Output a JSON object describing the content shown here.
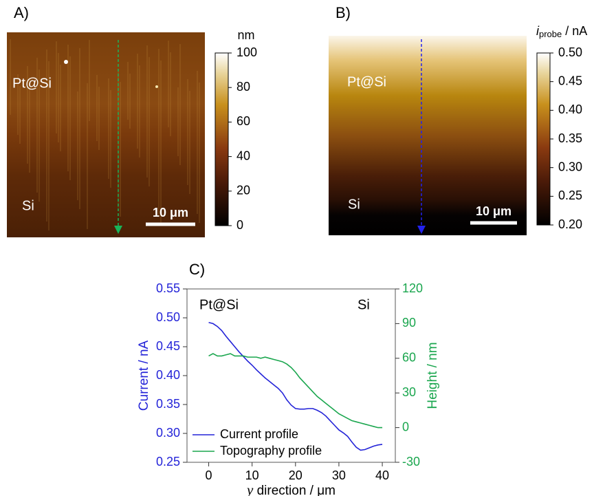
{
  "chart_data": [
    {
      "type": "image",
      "panel_label": "A)",
      "annotations": [
        "Pt@Si",
        "Si"
      ],
      "scale_bar": "10 μm",
      "colorbar_label": "nm",
      "clim": [
        0,
        100
      ],
      "cticks": [
        0,
        20,
        40,
        60,
        80,
        100
      ]
    },
    {
      "type": "image",
      "panel_label": "B)",
      "annotations": [
        "Pt@Si",
        "Si"
      ],
      "scale_bar": "10 μm",
      "colorbar_label": [
        "i",
        "probe",
        " / nA"
      ],
      "clim": [
        0.2,
        0.5
      ],
      "cticks": [
        {
          "value": 0.2,
          "label": "0.20"
        },
        0.25,
        {
          "value": 0.3,
          "label": "0.30"
        },
        0.35,
        {
          "value": 0.4,
          "label": "0.40"
        },
        0.45,
        {
          "value": 0.5,
          "label": "0.50"
        }
      ]
    },
    {
      "type": "line",
      "panel_label": "C)",
      "annotations": [
        "Pt@Si",
        "Si"
      ],
      "xlabel": [
        "y",
        " direction / μm"
      ],
      "ylabel": "Current / nA",
      "y2label": "Height / nm",
      "xlim": [
        -5,
        43
      ],
      "xticks": [
        0,
        10,
        20,
        30,
        40
      ],
      "ylim": [
        0.25,
        0.55
      ],
      "yticks": [
        0.25,
        {
          "value": 0.3,
          "label": "0.30"
        },
        0.35,
        {
          "value": 0.4,
          "label": "0.40"
        },
        0.45,
        {
          "value": 0.5,
          "label": "0.50"
        },
        0.55
      ],
      "y2lim": [
        -30,
        120
      ],
      "y2ticks": [
        -30,
        0,
        30,
        60,
        90,
        120
      ],
      "legend": "lower left",
      "x": [
        0,
        1,
        2,
        3,
        4,
        5,
        6,
        7,
        8,
        9,
        10,
        11,
        12,
        13,
        14,
        15,
        16,
        17,
        18,
        19,
        20,
        21,
        22,
        23,
        24,
        25,
        26,
        27,
        28,
        29,
        30,
        31,
        32,
        33,
        34,
        35,
        36,
        37,
        38,
        39,
        40
      ],
      "series": [
        {
          "name": "Current profile",
          "color": "#2323d8",
          "axis": "y",
          "values": [
            0.492,
            0.49,
            0.485,
            0.478,
            0.468,
            0.459,
            0.45,
            0.441,
            0.433,
            0.425,
            0.418,
            0.41,
            0.403,
            0.396,
            0.39,
            0.384,
            0.378,
            0.37,
            0.358,
            0.349,
            0.343,
            0.342,
            0.342,
            0.343,
            0.343,
            0.34,
            0.336,
            0.33,
            0.322,
            0.314,
            0.306,
            0.301,
            0.295,
            0.285,
            0.276,
            0.271,
            0.272,
            0.275,
            0.278,
            0.28,
            0.281
          ]
        },
        {
          "name": "Topography profile",
          "color": "#1aa64e",
          "axis": "y2",
          "values": [
            62,
            64,
            62,
            62,
            63,
            64,
            62,
            62,
            62,
            61,
            61,
            61,
            60,
            61,
            60,
            59,
            58,
            57,
            55,
            52,
            48,
            43,
            39,
            35,
            31,
            27,
            24,
            21,
            18,
            15,
            12,
            10,
            8,
            6,
            5,
            4,
            3,
            2,
            1,
            0,
            0
          ]
        }
      ]
    }
  ]
}
